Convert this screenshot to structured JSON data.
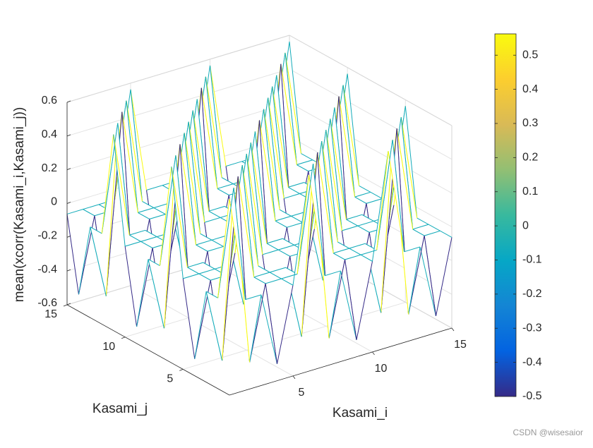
{
  "chart_data": {
    "type": "mesh3d",
    "xlabel": "Kasami_i",
    "ylabel": "Kasami_j",
    "zlabel": "mean(xcorr(Kasami_i,Kasami_j))",
    "x": [
      1,
      2,
      3,
      4,
      5,
      6,
      7,
      8,
      9,
      10,
      11,
      12,
      13,
      14,
      15
    ],
    "y": [
      1,
      2,
      3,
      4,
      5,
      6,
      7,
      8,
      9,
      10,
      11,
      12,
      13,
      14,
      15
    ],
    "z": [
      [
        0.5625,
        -0.0625,
        -0.0625,
        -0.5,
        -0.0625,
        0.5625,
        -0.0625,
        -0.0625,
        -0.5,
        -0.0625,
        0.5625,
        -0.0625,
        -0.0625,
        -0.5,
        -0.0625
      ],
      [
        -0.0625,
        0.5625,
        -0.5,
        -0.0625,
        -0.0625,
        -0.0625,
        0.5625,
        -0.5,
        -0.0625,
        -0.0625,
        -0.0625,
        0.5625,
        -0.5,
        -0.0625,
        -0.0625
      ],
      [
        -0.0625,
        -0.5,
        0.5625,
        -0.0625,
        -0.0625,
        -0.0625,
        -0.5,
        0.5625,
        -0.0625,
        -0.0625,
        -0.0625,
        -0.5,
        0.5625,
        -0.0625,
        -0.0625
      ],
      [
        -0.5,
        -0.0625,
        -0.0625,
        0.5625,
        -0.0625,
        -0.5,
        -0.0625,
        -0.0625,
        0.5625,
        -0.0625,
        -0.5,
        -0.0625,
        -0.0625,
        0.5625,
        -0.0625
      ],
      [
        -0.0625,
        -0.0625,
        -0.0625,
        -0.0625,
        0.5625,
        -0.0625,
        -0.0625,
        -0.0625,
        -0.0625,
        0.5625,
        -0.0625,
        -0.0625,
        -0.0625,
        -0.0625,
        0.5625
      ],
      [
        0.5625,
        -0.0625,
        -0.0625,
        -0.5,
        -0.0625,
        0.5625,
        -0.0625,
        -0.0625,
        -0.5,
        -0.0625,
        0.5625,
        -0.0625,
        -0.0625,
        -0.5,
        -0.0625
      ],
      [
        -0.0625,
        0.5625,
        -0.5,
        -0.0625,
        -0.0625,
        -0.0625,
        0.5625,
        -0.5,
        -0.0625,
        -0.0625,
        -0.0625,
        0.5625,
        -0.5,
        -0.0625,
        -0.0625
      ],
      [
        -0.0625,
        -0.5,
        0.5625,
        -0.0625,
        -0.0625,
        -0.0625,
        -0.5,
        0.5625,
        -0.0625,
        -0.0625,
        -0.0625,
        -0.5,
        0.5625,
        -0.0625,
        -0.0625
      ],
      [
        -0.5,
        -0.0625,
        -0.0625,
        0.5625,
        -0.0625,
        -0.5,
        -0.0625,
        -0.0625,
        0.5625,
        -0.0625,
        -0.5,
        -0.0625,
        -0.0625,
        0.5625,
        -0.0625
      ],
      [
        -0.0625,
        -0.0625,
        -0.0625,
        -0.0625,
        0.5625,
        -0.0625,
        -0.0625,
        -0.0625,
        -0.0625,
        0.5625,
        -0.0625,
        -0.0625,
        -0.0625,
        -0.0625,
        0.5625
      ],
      [
        0.5625,
        -0.0625,
        -0.0625,
        -0.5,
        -0.0625,
        0.5625,
        -0.0625,
        -0.0625,
        -0.5,
        -0.0625,
        0.5625,
        -0.0625,
        -0.0625,
        -0.5,
        -0.0625
      ],
      [
        -0.0625,
        0.5625,
        -0.5,
        -0.0625,
        -0.0625,
        -0.0625,
        0.5625,
        -0.5,
        -0.0625,
        -0.0625,
        -0.0625,
        0.5625,
        -0.5,
        -0.0625,
        -0.0625
      ],
      [
        -0.0625,
        -0.5,
        0.5625,
        -0.0625,
        -0.0625,
        -0.0625,
        -0.5,
        0.5625,
        -0.0625,
        -0.0625,
        -0.0625,
        -0.5,
        0.5625,
        -0.0625,
        -0.0625
      ],
      [
        -0.5,
        -0.0625,
        -0.0625,
        0.5625,
        -0.0625,
        -0.5,
        -0.0625,
        -0.0625,
        0.5625,
        -0.0625,
        -0.5,
        -0.0625,
        -0.0625,
        0.5625,
        -0.0625
      ],
      [
        -0.0625,
        -0.0625,
        -0.0625,
        -0.0625,
        0.5625,
        -0.0625,
        -0.0625,
        -0.0625,
        -0.0625,
        0.5625,
        -0.0625,
        -0.0625,
        -0.0625,
        -0.0625,
        0.5625
      ]
    ],
    "xlim": [
      1,
      15
    ],
    "ylim": [
      1,
      15
    ],
    "zlim": [
      -0.6,
      0.6
    ],
    "xticks": [
      5,
      10,
      15
    ],
    "yticks": [
      5,
      10,
      15
    ],
    "zticks": [
      -0.6,
      -0.4,
      -0.2,
      0,
      0.2,
      0.4,
      0.6
    ],
    "grid": true,
    "colorbar": {
      "clim": [
        -0.5,
        0.5625
      ],
      "ticks": [
        -0.5,
        -0.4,
        -0.3,
        -0.2,
        -0.1,
        0,
        0.1,
        0.2,
        0.3,
        0.4,
        0.5
      ]
    },
    "watermark": "CSDN @wisesaior"
  }
}
